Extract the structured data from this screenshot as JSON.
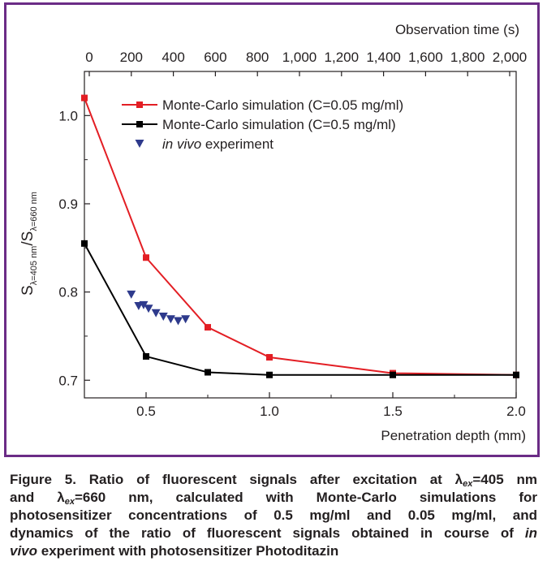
{
  "chart_data": {
    "type": "line",
    "x": [
      0.25,
      0.5,
      0.75,
      1.0,
      1.5,
      2.0
    ],
    "series": [
      {
        "name": "Monte-Carlo simulation (C=0.05 mg/ml)",
        "color": "#e31e24",
        "marker": "square",
        "x": [
          0.25,
          0.5,
          0.75,
          1.0,
          1.5,
          2.0
        ],
        "values": [
          1.02,
          0.839,
          0.76,
          0.726,
          0.708,
          0.706
        ]
      },
      {
        "name": "Monte-Carlo simulation (C=0.5 mg/ml)",
        "color": "#000000",
        "marker": "square",
        "x": [
          0.25,
          0.5,
          0.75,
          1.0,
          1.5,
          2.0
        ],
        "values": [
          0.855,
          0.727,
          0.709,
          0.706,
          0.706,
          0.706
        ]
      },
      {
        "name_prefix_italic": "in vivo",
        "name_suffix": " experiment",
        "color": "#2e3a8c",
        "marker": "triangle-down",
        "line": false,
        "x": [
          0.44,
          0.47,
          0.49,
          0.51,
          0.54,
          0.57,
          0.6,
          0.63,
          0.66
        ],
        "values": [
          0.797,
          0.784,
          0.785,
          0.781,
          0.776,
          0.772,
          0.769,
          0.767,
          0.769
        ]
      }
    ],
    "xlabel": "Penetration depth (mm)",
    "xlim": [
      0.25,
      2.0
    ],
    "xticks": [
      "0.5",
      "1.0",
      "1.5",
      "2.0"
    ],
    "xtick_values": [
      0.5,
      1.0,
      1.5,
      2.0
    ],
    "ylim": [
      0.68,
      1.05
    ],
    "yticks": [
      "0.7",
      "0.8",
      "0.9",
      "1.0"
    ],
    "ytick_values": [
      0.7,
      0.8,
      0.9,
      1.0
    ],
    "ylabel": {
      "base1": "S",
      "sub1": "λ=405 nm",
      "slash": "/",
      "base2": "S",
      "sub2": "λ=660 nm"
    },
    "top_axis": {
      "label": "Observation time (s)",
      "ticks": [
        "0",
        "200",
        "400",
        "600",
        "800",
        "1,000",
        "1,200",
        "1,400",
        "1,600",
        "1,800",
        "2,000"
      ]
    },
    "legend_position": "top-left",
    "grid": false
  },
  "caption": {
    "label": "Figure 5.",
    "line1": "Ratio of fluorescent signals after excitation at",
    "lambda": "λ",
    "ex": "ex",
    "eq405": "=405 nm",
    "and": "and",
    "eq660": "=660 nm, calculated with Monte-Carlo simulations for",
    "line3": "photosensitizer concentrations of 0.5 mg/ml and 0.05 mg/ml, and",
    "line4": "dynamics of the ratio of fluorescent signals obtained in course of",
    "in_vivo": "in",
    "vivo": "vivo",
    "line5_rest": "experiment with photosensitizer Photoditazin"
  }
}
